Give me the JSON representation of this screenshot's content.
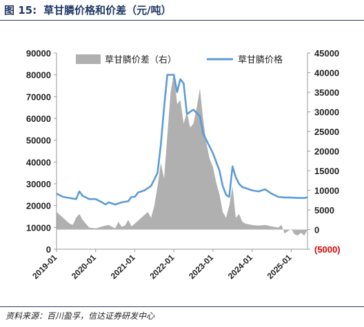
{
  "figure": {
    "number": "图 15:",
    "title": "草甘膦价格和价差（元/吨）",
    "source": "资料来源：百川盈孚，信达证券研发中心"
  },
  "chart_data": {
    "type": "line",
    "title": "草甘膦价格和价差（元/吨）",
    "x_ticks": [
      "2019-01",
      "2020-01",
      "2021-01",
      "2022-01",
      "2023-01",
      "2024-01",
      "2025-01"
    ],
    "x_range": [
      "2019-01",
      "2025-06"
    ],
    "left_axis": {
      "min": 0,
      "max": 90000,
      "step": 10000,
      "ticks": [
        "0",
        "10000",
        "20000",
        "30000",
        "40000",
        "50000",
        "60000",
        "70000",
        "80000",
        "90000"
      ]
    },
    "right_axis": {
      "min": -5000,
      "max": 45000,
      "step": 5000,
      "ticks": [
        "(5000)",
        "0",
        "5000",
        "10000",
        "15000",
        "20000",
        "25000",
        "30000",
        "35000",
        "40000",
        "45000"
      ]
    },
    "legend": {
      "placement": "top",
      "items": [
        "草甘膦价差（右）",
        "草甘膦价格"
      ]
    },
    "colors": {
      "spread": "#b0b0b0",
      "price": "#5b9bd5",
      "negative_tick": "#e00000",
      "title": "#1f3864"
    },
    "series": [
      {
        "name": "草甘膦价格",
        "axis": "left",
        "points": [
          [
            "2019-01",
            25500
          ],
          [
            "2019-03",
            24000
          ],
          [
            "2019-05",
            23500
          ],
          [
            "2019-07",
            23000
          ],
          [
            "2019-08",
            26500
          ],
          [
            "2019-09",
            24500
          ],
          [
            "2019-11",
            23000
          ],
          [
            "2020-01",
            23000
          ],
          [
            "2020-03",
            21500
          ],
          [
            "2020-04",
            20500
          ],
          [
            "2020-05",
            21500
          ],
          [
            "2020-07",
            20500
          ],
          [
            "2020-09",
            21500
          ],
          [
            "2020-11",
            22000
          ],
          [
            "2020-12",
            24000
          ],
          [
            "2021-01",
            24000
          ],
          [
            "2021-02",
            26000
          ],
          [
            "2021-04",
            27000
          ],
          [
            "2021-06",
            29000
          ],
          [
            "2021-08",
            35000
          ],
          [
            "2021-09",
            48000
          ],
          [
            "2021-10",
            65000
          ],
          [
            "2021-11",
            80000
          ],
          [
            "2022-01",
            80000
          ],
          [
            "2022-02",
            72000
          ],
          [
            "2022-03",
            78000
          ],
          [
            "2022-04",
            76000
          ],
          [
            "2022-05",
            62000
          ],
          [
            "2022-06",
            63000
          ],
          [
            "2022-07",
            64000
          ],
          [
            "2022-09",
            61000
          ],
          [
            "2022-10",
            53000
          ],
          [
            "2022-11",
            50000
          ],
          [
            "2022-12",
            47000
          ],
          [
            "2023-01",
            44000
          ],
          [
            "2023-03",
            36000
          ],
          [
            "2023-04",
            29000
          ],
          [
            "2023-05",
            25000
          ],
          [
            "2023-06",
            24000
          ],
          [
            "2023-07",
            38000
          ],
          [
            "2023-08",
            33000
          ],
          [
            "2023-09",
            30000
          ],
          [
            "2023-10",
            28500
          ],
          [
            "2023-11",
            28000
          ],
          [
            "2024-01",
            27000
          ],
          [
            "2024-03",
            26500
          ],
          [
            "2024-05",
            27500
          ],
          [
            "2024-07",
            25500
          ],
          [
            "2024-09",
            24000
          ],
          [
            "2024-11",
            23700
          ],
          [
            "2025-01",
            23700
          ],
          [
            "2025-03",
            23500
          ],
          [
            "2025-05",
            23500
          ],
          [
            "2025-06",
            23800
          ]
        ]
      },
      {
        "name": "草甘膦价差（右）",
        "axis": "right",
        "points": [
          [
            "2019-01",
            4500
          ],
          [
            "2019-03",
            3000
          ],
          [
            "2019-05",
            1500
          ],
          [
            "2019-06",
            1200
          ],
          [
            "2019-07",
            3000
          ],
          [
            "2019-08",
            4000
          ],
          [
            "2019-09",
            2500
          ],
          [
            "2019-11",
            500
          ],
          [
            "2020-01",
            300
          ],
          [
            "2020-03",
            800
          ],
          [
            "2020-05",
            1200
          ],
          [
            "2020-07",
            300
          ],
          [
            "2020-08",
            2000
          ],
          [
            "2020-09",
            700
          ],
          [
            "2020-10",
            1000
          ],
          [
            "2020-11",
            2500
          ],
          [
            "2020-12",
            800
          ],
          [
            "2021-01",
            1500
          ],
          [
            "2021-03",
            3000
          ],
          [
            "2021-05",
            4500
          ],
          [
            "2021-06",
            3000
          ],
          [
            "2021-07",
            6000
          ],
          [
            "2021-08",
            11000
          ],
          [
            "2021-09",
            17000
          ],
          [
            "2021-10",
            13000
          ],
          [
            "2021-11",
            24000
          ],
          [
            "2021-12",
            35000
          ],
          [
            "2022-01",
            40000
          ],
          [
            "2022-02",
            32000
          ],
          [
            "2022-03",
            33000
          ],
          [
            "2022-04",
            27000
          ],
          [
            "2022-05",
            30000
          ],
          [
            "2022-06",
            26000
          ],
          [
            "2022-07",
            27000
          ],
          [
            "2022-08",
            31000
          ],
          [
            "2022-09",
            36000
          ],
          [
            "2022-10",
            28000
          ],
          [
            "2022-11",
            22000
          ],
          [
            "2022-12",
            18000
          ],
          [
            "2023-01",
            16000
          ],
          [
            "2023-02",
            12000
          ],
          [
            "2023-03",
            9000
          ],
          [
            "2023-04",
            4500
          ],
          [
            "2023-05",
            3000
          ],
          [
            "2023-06",
            6000
          ],
          [
            "2023-07",
            11000
          ],
          [
            "2023-08",
            3000
          ],
          [
            "2023-09",
            4000
          ],
          [
            "2023-10",
            2000
          ],
          [
            "2023-11",
            1500
          ],
          [
            "2024-01",
            1200
          ],
          [
            "2024-03",
            1000
          ],
          [
            "2024-05",
            1200
          ],
          [
            "2024-07",
            800
          ],
          [
            "2024-09",
            500
          ],
          [
            "2024-10",
            1200
          ],
          [
            "2024-11",
            -1000
          ],
          [
            "2025-01",
            200
          ],
          [
            "2025-02",
            -1200
          ],
          [
            "2025-03",
            -1500
          ],
          [
            "2025-04",
            -800
          ],
          [
            "2025-05",
            -1500
          ],
          [
            "2025-06",
            0
          ]
        ]
      }
    ]
  }
}
